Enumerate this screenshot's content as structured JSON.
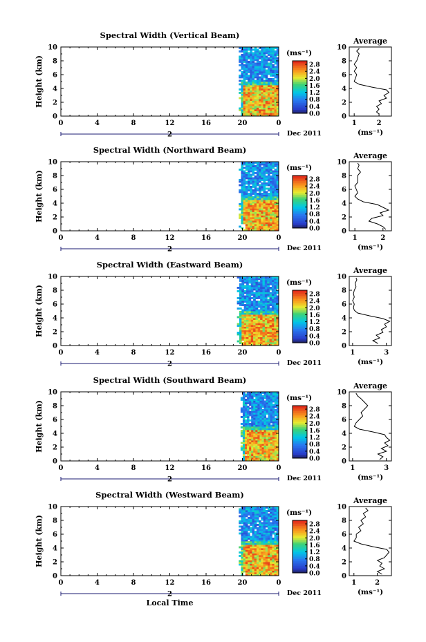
{
  "chart_data": [
    {
      "type": "heatmap",
      "title": "Spectral Width (Vertical Beam)",
      "ylabel": "Height (km)",
      "xlim": [
        0,
        24
      ],
      "ylim": [
        0,
        10
      ],
      "xticks": [
        "0",
        "4",
        "8",
        "12",
        "16",
        "20",
        "0"
      ],
      "day_label": "2",
      "date_label": "Dec 2011",
      "colorbar": {
        "unit": "(ms⁻¹)",
        "ticks": [
          "2.8",
          "2.4",
          "2.0",
          "1.6",
          "1.2",
          "0.8",
          "0.4",
          "0.0"
        ],
        "vmin": 0,
        "vmax": 3.0
      },
      "data_start_hour": 19.6,
      "average": {
        "title": "Average",
        "xlabel": "(ms⁻¹)",
        "xlim": [
          0.8,
          2.5
        ],
        "xticks": [
          1,
          2
        ],
        "xticklabels": [
          "1",
          "2"
        ],
        "ylim": [
          0,
          10
        ],
        "profile": [
          [
            0.3,
            2.0
          ],
          [
            0.6,
            1.9
          ],
          [
            1.0,
            2.0
          ],
          [
            1.4,
            1.9
          ],
          [
            1.8,
            2.1
          ],
          [
            2.2,
            2.0
          ],
          [
            2.6,
            2.3
          ],
          [
            3.0,
            2.2
          ],
          [
            3.4,
            2.4
          ],
          [
            3.8,
            2.3
          ],
          [
            4.2,
            1.7
          ],
          [
            4.6,
            1.2
          ],
          [
            5.0,
            1.0
          ],
          [
            5.5,
            1.05
          ],
          [
            6.0,
            1.1
          ],
          [
            6.5,
            1.0
          ],
          [
            7.0,
            1.1
          ],
          [
            7.5,
            1.0
          ],
          [
            8.0,
            1.1
          ],
          [
            8.5,
            1.15
          ],
          [
            9.0,
            1.2
          ],
          [
            9.4,
            1.1
          ],
          [
            9.8,
            1.2
          ]
        ]
      }
    },
    {
      "type": "heatmap",
      "title": "Spectral Width (Northward Beam)",
      "ylabel": "Height (km)",
      "xlim": [
        0,
        24
      ],
      "ylim": [
        0,
        10
      ],
      "xticks": [
        "0",
        "4",
        "8",
        "12",
        "16",
        "20",
        "0"
      ],
      "day_label": "2",
      "date_label": "Dec 2011",
      "colorbar": {
        "unit": "(ms⁻¹)",
        "ticks": [
          "2.8",
          "2.4",
          "2.0",
          "1.6",
          "1.2",
          "0.8",
          "0.4",
          "0.0"
        ],
        "vmin": 0,
        "vmax": 3.0
      },
      "data_start_hour": 19.6,
      "average": {
        "title": "Average",
        "xlabel": "(ms⁻¹)",
        "xlim": [
          0.8,
          2.3
        ],
        "xticks": [
          1,
          2
        ],
        "xticklabels": [
          "1",
          "2"
        ],
        "ylim": [
          0,
          10
        ],
        "profile": [
          [
            0.2,
            2.1
          ],
          [
            0.6,
            2.0
          ],
          [
            1.0,
            1.8
          ],
          [
            1.4,
            1.5
          ],
          [
            1.8,
            1.6
          ],
          [
            2.2,
            2.0
          ],
          [
            2.6,
            1.9
          ],
          [
            3.0,
            2.2
          ],
          [
            3.4,
            2.0
          ],
          [
            3.8,
            1.8
          ],
          [
            4.2,
            1.3
          ],
          [
            4.6,
            1.1
          ],
          [
            5.0,
            1.0
          ],
          [
            5.5,
            1.1
          ],
          [
            6.0,
            1.05
          ],
          [
            6.5,
            1.0
          ],
          [
            7.0,
            1.1
          ],
          [
            7.5,
            1.1
          ],
          [
            8.0,
            1.1
          ],
          [
            8.5,
            1.2
          ],
          [
            9.0,
            1.1
          ],
          [
            9.5,
            1.15
          ],
          [
            9.8,
            1.1
          ]
        ]
      }
    },
    {
      "type": "heatmap",
      "title": "Spectral Width (Eastward Beam)",
      "ylabel": "Height (km)",
      "xlim": [
        0,
        24
      ],
      "ylim": [
        0,
        10
      ],
      "xticks": [
        "0",
        "4",
        "8",
        "12",
        "16",
        "20",
        "0"
      ],
      "day_label": "2",
      "date_label": "Dec 2011",
      "colorbar": {
        "unit": "(ms⁻¹)",
        "ticks": [
          "2.8",
          "2.4",
          "2.0",
          "1.6",
          "1.2",
          "0.8",
          "0.4",
          "0.0"
        ],
        "vmin": 0,
        "vmax": 3.0
      },
      "data_start_hour": 19.4,
      "average": {
        "title": "Average",
        "xlabel": "(ms⁻¹)",
        "xlim": [
          0.8,
          3.3
        ],
        "xticks": [
          1,
          3
        ],
        "xticklabels": [
          "1",
          "3"
        ],
        "ylim": [
          0,
          10
        ],
        "profile": [
          [
            0.3,
            2.5
          ],
          [
            0.7,
            2.2
          ],
          [
            1.1,
            2.6
          ],
          [
            1.5,
            2.4
          ],
          [
            1.9,
            2.8
          ],
          [
            2.3,
            2.7
          ],
          [
            2.7,
            3.0
          ],
          [
            3.1,
            2.9
          ],
          [
            3.5,
            3.2
          ],
          [
            3.9,
            2.8
          ],
          [
            4.3,
            2.0
          ],
          [
            4.7,
            1.3
          ],
          [
            5.1,
            1.1
          ],
          [
            5.5,
            1.05
          ],
          [
            6.0,
            1.1
          ],
          [
            6.5,
            1.0
          ],
          [
            7.0,
            1.1
          ],
          [
            7.5,
            1.05
          ],
          [
            8.0,
            1.1
          ],
          [
            8.5,
            1.2
          ],
          [
            9.0,
            1.15
          ],
          [
            9.5,
            1.25
          ],
          [
            9.8,
            1.2
          ]
        ]
      }
    },
    {
      "type": "heatmap",
      "title": "Spectral Width (Southward Beam)",
      "ylabel": "Height (km)",
      "xlim": [
        0,
        24
      ],
      "ylim": [
        0,
        10
      ],
      "xticks": [
        "0",
        "4",
        "8",
        "12",
        "16",
        "20",
        "0"
      ],
      "day_label": "2",
      "date_label": "Dec 2011",
      "colorbar": {
        "unit": "(ms⁻¹)",
        "ticks": [
          "2.8",
          "2.4",
          "2.0",
          "1.6",
          "1.2",
          "0.8",
          "0.4",
          "0.0"
        ],
        "vmin": 0,
        "vmax": 3.0
      },
      "data_start_hour": 19.8,
      "average": {
        "title": "Average",
        "xlabel": "(ms⁻¹)",
        "xlim": [
          0.8,
          3.3
        ],
        "xticks": [
          1,
          3
        ],
        "xticklabels": [
          "1",
          "3"
        ],
        "ylim": [
          0,
          10
        ],
        "profile": [
          [
            0.2,
            2.6
          ],
          [
            0.6,
            2.8
          ],
          [
            1.0,
            2.5
          ],
          [
            1.4,
            3.0
          ],
          [
            1.8,
            2.7
          ],
          [
            2.2,
            3.1
          ],
          [
            2.6,
            2.9
          ],
          [
            3.0,
            3.2
          ],
          [
            3.4,
            3.0
          ],
          [
            3.8,
            2.9
          ],
          [
            4.2,
            2.2
          ],
          [
            4.6,
            1.4
          ],
          [
            5.0,
            1.1
          ],
          [
            5.5,
            1.2
          ],
          [
            6.0,
            1.4
          ],
          [
            6.5,
            1.6
          ],
          [
            7.0,
            1.5
          ],
          [
            7.5,
            1.7
          ],
          [
            8.0,
            1.9
          ],
          [
            8.5,
            1.7
          ],
          [
            9.0,
            1.5
          ],
          [
            9.4,
            1.3
          ],
          [
            9.8,
            1.2
          ]
        ]
      }
    },
    {
      "type": "heatmap",
      "title": "Spectral Width (Westward Beam)",
      "ylabel": "Height (km)",
      "xlim": [
        0,
        24
      ],
      "ylim": [
        0,
        10
      ],
      "xticks": [
        "0",
        "4",
        "8",
        "12",
        "16",
        "20",
        "0"
      ],
      "day_label": "2",
      "date_label": "Dec 2011",
      "xlabel": "Local Time",
      "colorbar": {
        "unit": "(ms⁻¹)",
        "ticks": [
          "2.8",
          "2.4",
          "2.0",
          "1.6",
          "1.2",
          "0.8",
          "0.4",
          "0.0"
        ],
        "vmin": 0,
        "vmax": 3.0
      },
      "data_start_hour": 19.6,
      "average": {
        "title": "Average",
        "xlabel": "(ms⁻¹)",
        "xlim": [
          0.8,
          2.6
        ],
        "xticks": [
          1,
          2
        ],
        "xticklabels": [
          "1",
          "2"
        ],
        "ylim": [
          0,
          10
        ],
        "profile": [
          [
            0.2,
            2.2
          ],
          [
            0.6,
            2.0
          ],
          [
            1.0,
            2.3
          ],
          [
            1.4,
            2.1
          ],
          [
            1.8,
            2.2
          ],
          [
            2.2,
            2.0
          ],
          [
            2.6,
            2.3
          ],
          [
            3.0,
            2.4
          ],
          [
            3.4,
            2.5
          ],
          [
            3.8,
            2.4
          ],
          [
            4.2,
            1.8
          ],
          [
            4.6,
            1.3
          ],
          [
            5.0,
            1.0
          ],
          [
            5.5,
            1.1
          ],
          [
            6.0,
            1.1
          ],
          [
            6.5,
            1.3
          ],
          [
            7.0,
            1.2
          ],
          [
            7.5,
            1.4
          ],
          [
            8.0,
            1.3
          ],
          [
            8.5,
            1.5
          ],
          [
            9.0,
            1.4
          ],
          [
            9.4,
            1.6
          ],
          [
            9.8,
            1.5
          ]
        ]
      }
    }
  ]
}
